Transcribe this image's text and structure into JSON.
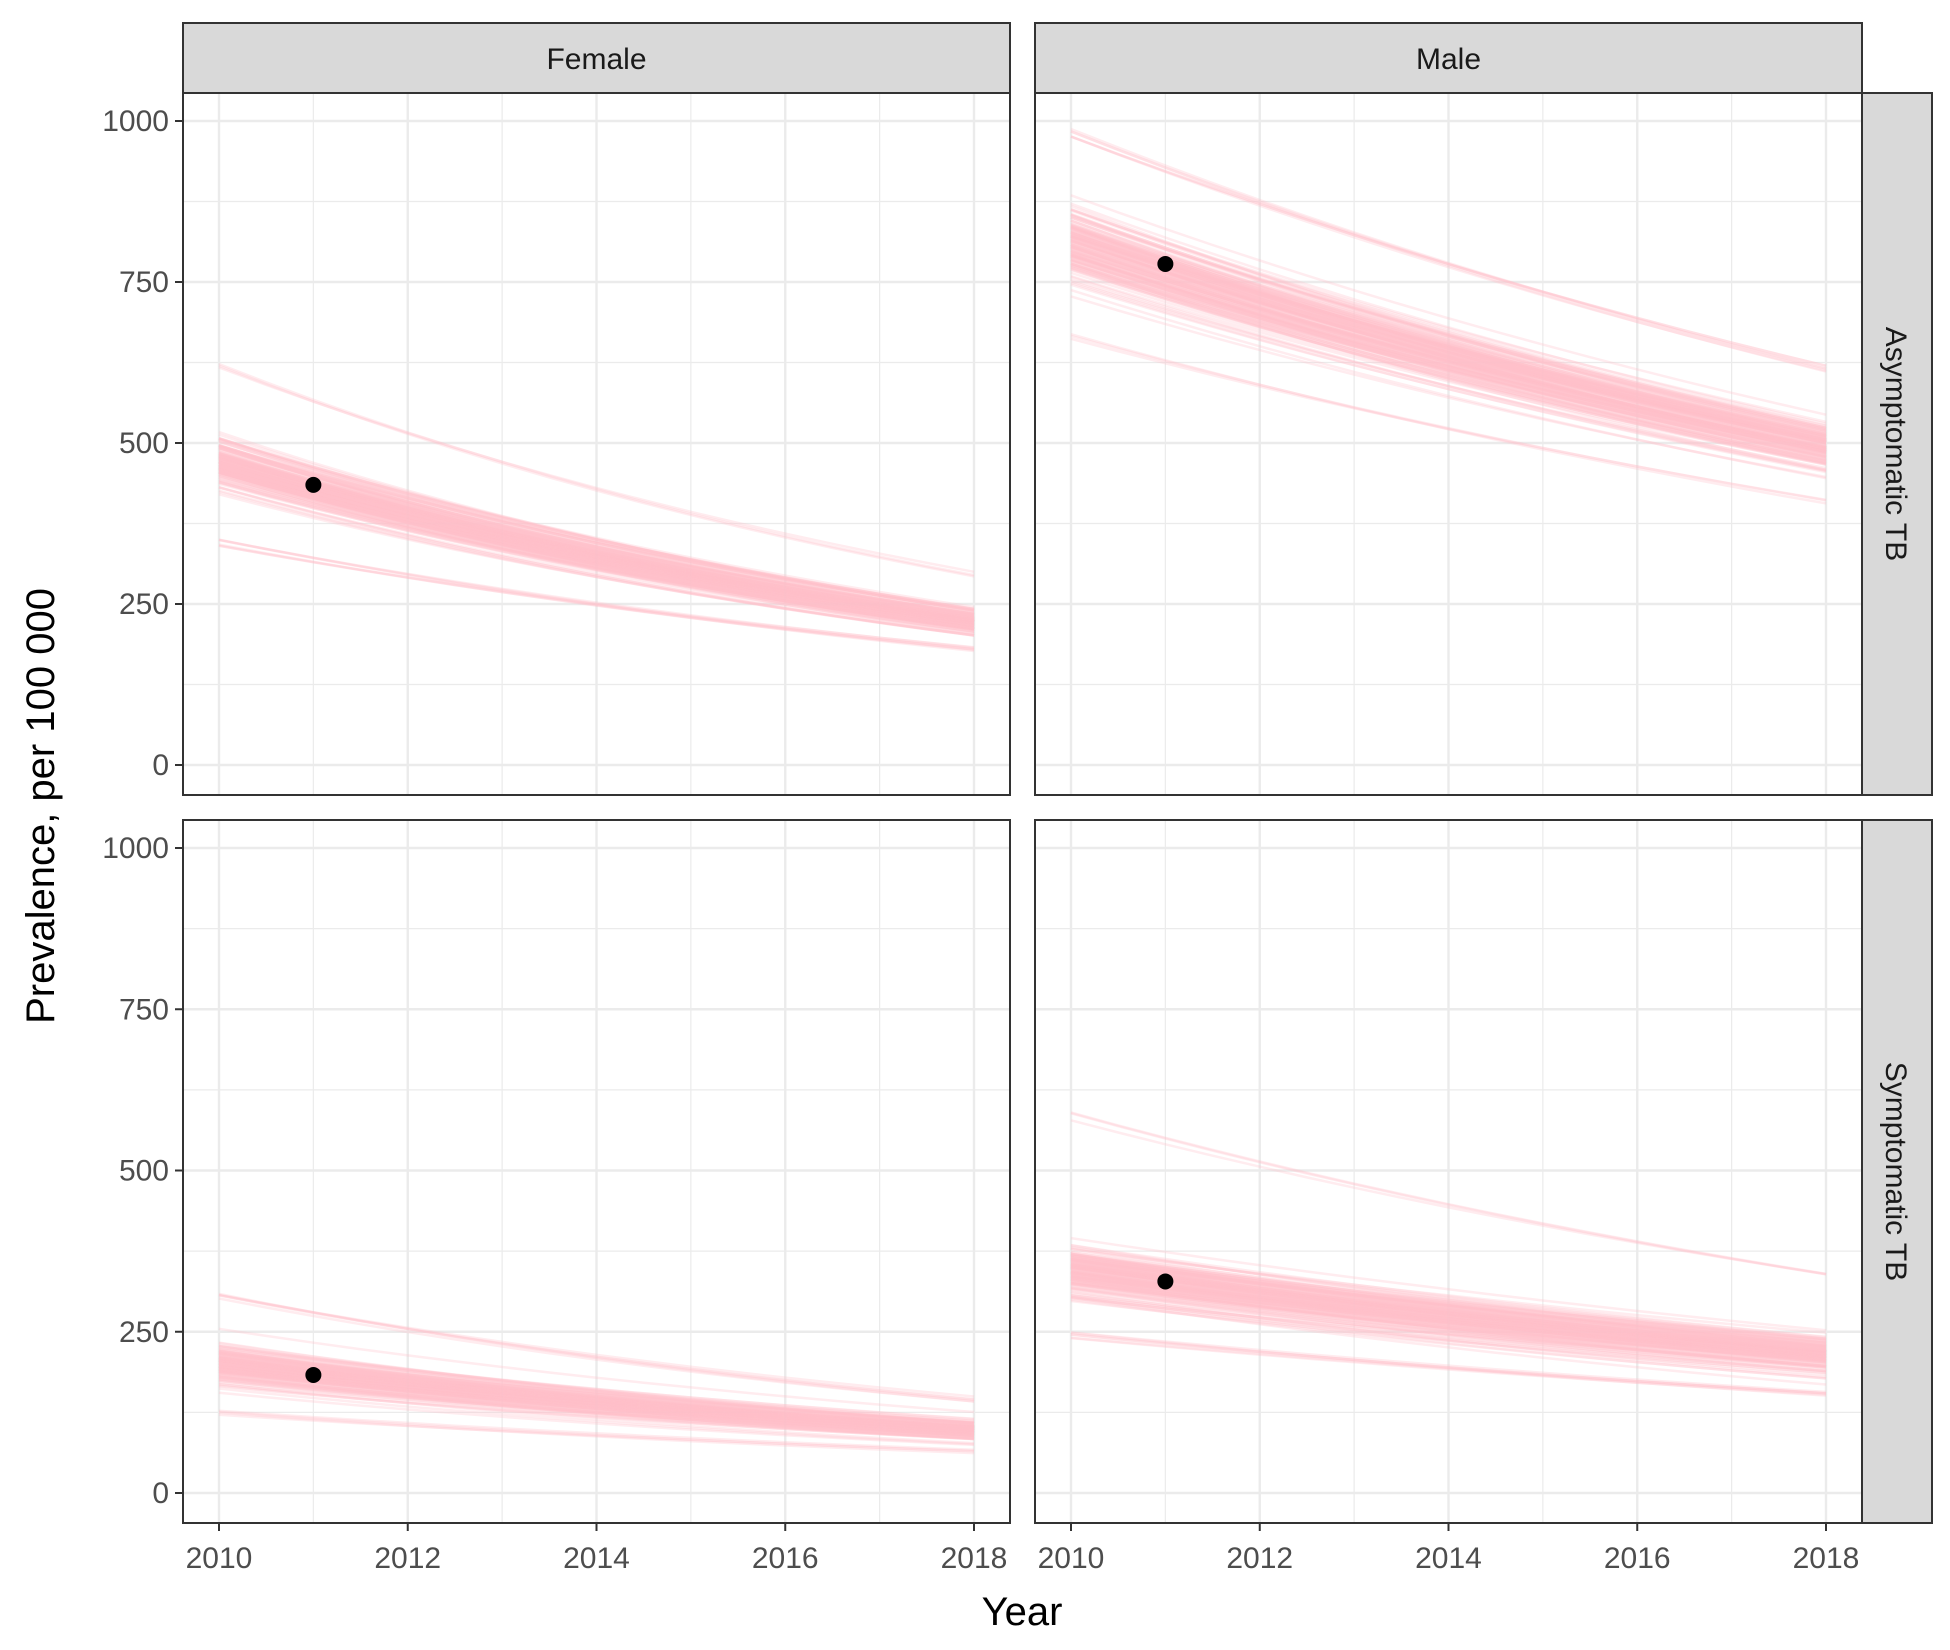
{
  "chart_data": {
    "type": "line",
    "xlabel": "Year",
    "ylabel": "Prevalence, per 100 000",
    "xlim": [
      2010,
      2018
    ],
    "ylim": [
      0,
      1000
    ],
    "x_ticks": [
      2010,
      2012,
      2014,
      2016,
      2018
    ],
    "y_ticks": [
      0,
      250,
      500,
      750,
      1000
    ],
    "x_tick_labels": [
      "2010",
      "2012",
      "2014",
      "2016",
      "2018"
    ],
    "y_tick_labels": [
      "0",
      "250",
      "500",
      "750",
      "1000"
    ],
    "col_facets": [
      "Female",
      "Male"
    ],
    "row_facets": [
      "Asymptomatic TB",
      "Symptomatic TB"
    ],
    "grid": true,
    "theme": "bw",
    "colors": {
      "trajectory": "#ffc0cb",
      "observed": "#000000",
      "strip_fill": "#d9d9d9",
      "grid": "#ebebeb",
      "border": "#333333"
    },
    "panels": [
      {
        "sex": "Female",
        "state": "Asymptomatic TB",
        "simulated_trajectories": {
          "x": [
            2010,
            2018
          ],
          "n_lines": 160,
          "y_2010_range": [
            340,
            630
          ],
          "y_2010_central": [
            390,
            550
          ],
          "y_2018_range": [
            175,
            300
          ],
          "y_2018_central": [
            185,
            260
          ]
        },
        "observed": {
          "x": 2011,
          "y": 435
        }
      },
      {
        "sex": "Male",
        "state": "Asymptomatic TB",
        "simulated_trajectories": {
          "x": [
            2010,
            2018
          ],
          "n_lines": 160,
          "y_2010_range": [
            660,
            990
          ],
          "y_2010_central": [
            680,
            940
          ],
          "y_2018_range": [
            405,
            620
          ],
          "y_2018_central": [
            420,
            570
          ]
        },
        "observed": {
          "x": 2011,
          "y": 778
        }
      },
      {
        "sex": "Female",
        "state": "Symptomatic TB",
        "simulated_trajectories": {
          "x": [
            2010,
            2018
          ],
          "n_lines": 160,
          "y_2010_range": [
            120,
            310
          ],
          "y_2010_central": [
            130,
            270
          ],
          "y_2018_range": [
            60,
            150
          ],
          "y_2018_central": [
            65,
            130
          ]
        },
        "observed": {
          "x": 2011,
          "y": 183
        }
      },
      {
        "sex": "Male",
        "state": "Symptomatic TB",
        "simulated_trajectories": {
          "x": [
            2010,
            2018
          ],
          "n_lines": 160,
          "y_2010_range": [
            240,
            590
          ],
          "y_2010_central": [
            260,
            430
          ],
          "y_2018_range": [
            150,
            340
          ],
          "y_2018_central": [
            160,
            270
          ]
        },
        "observed": {
          "x": 2011,
          "y": 328
        }
      }
    ]
  }
}
